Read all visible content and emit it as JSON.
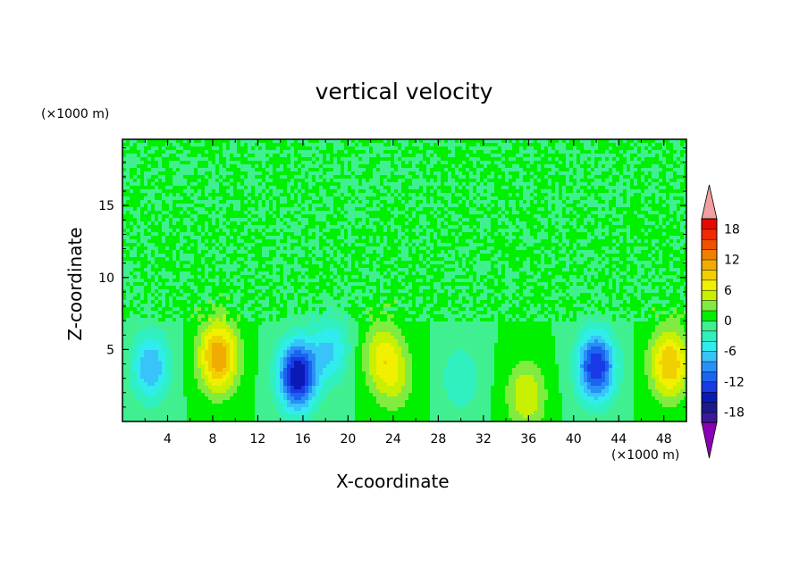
{
  "chart_data": {
    "type": "heatmap",
    "title": "vertical velocity",
    "xlabel": "X-coordinate",
    "ylabel": "Z-coordinate",
    "x_unit": "(×1000 m)",
    "z_unit": "(×1000 m)",
    "xlim": [
      0,
      50
    ],
    "zlim": [
      0,
      19.6
    ],
    "x_ticks": [
      4,
      8,
      12,
      16,
      20,
      24,
      28,
      32,
      36,
      40,
      44,
      48
    ],
    "z_ticks": [
      5,
      10,
      15
    ],
    "colorbar": {
      "levels": [
        -20,
        -18,
        -16,
        -14,
        -12,
        -10,
        -8,
        -6,
        -4,
        -2,
        0,
        2,
        4,
        6,
        8,
        10,
        12,
        14,
        16,
        18,
        20
      ],
      "tick_labels": [
        "18",
        "12",
        "6",
        "0",
        "-6",
        "-12",
        "-18"
      ],
      "tick_values": [
        18,
        12,
        6,
        0,
        -6,
        -12,
        -18
      ],
      "colors": [
        "#3a1a9a",
        "#1a1a8a",
        "#0a1ab4",
        "#1a3ae6",
        "#1a64f0",
        "#2a90f8",
        "#38c4f8",
        "#30ecec",
        "#30f0c0",
        "#40f090",
        "#00f000",
        "#80ec40",
        "#c8f000",
        "#f0f000",
        "#f0d000",
        "#f0ac00",
        "#f08000",
        "#f05000",
        "#f02a00",
        "#e60a00"
      ],
      "under_color": "#8a00b4",
      "over_color": "#f0a0a0"
    },
    "features": [
      {
        "x": 2.5,
        "z": 3.8,
        "value": -8
      },
      {
        "x": 8.5,
        "z": 4.5,
        "value": 12
      },
      {
        "x": 15.5,
        "z": 3.2,
        "value": -16
      },
      {
        "x": 18.5,
        "z": 5.0,
        "value": -6
      },
      {
        "x": 23.0,
        "z": 4.6,
        "value": 6
      },
      {
        "x": 24.2,
        "z": 3.0,
        "value": 4
      },
      {
        "x": 35.8,
        "z": 1.8,
        "value": 6
      },
      {
        "x": 42.0,
        "z": 3.8,
        "value": -14
      },
      {
        "x": 48.5,
        "z": 4.0,
        "value": 10
      },
      {
        "x": 30.0,
        "z": 3.0,
        "value": -4
      }
    ]
  }
}
